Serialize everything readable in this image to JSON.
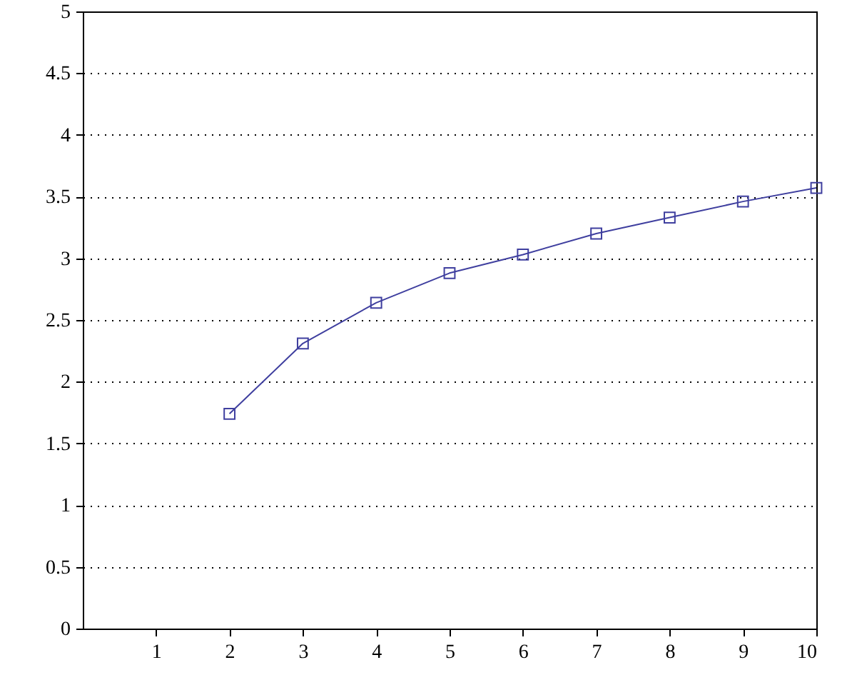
{
  "chart_data": {
    "type": "line",
    "x": [
      2,
      3,
      4,
      5,
      6,
      7,
      8,
      9,
      10
    ],
    "series": [
      {
        "color": "#3f3f9f",
        "values": [
          1.74,
          2.31,
          2.64,
          2.88,
          3.03,
          3.2,
          3.33,
          3.46,
          3.57
        ]
      }
    ],
    "xlim": [
      0,
      10
    ],
    "xticks": [
      1,
      2,
      3,
      4,
      5,
      6,
      7,
      8,
      9,
      10
    ],
    "ylim": [
      0,
      5
    ],
    "yticks": [
      0,
      0.5,
      1,
      1.5,
      2,
      2.5,
      3,
      3.5,
      4,
      4.5,
      5
    ],
    "grid": "y",
    "marker": "square",
    "line_style": "solid"
  }
}
